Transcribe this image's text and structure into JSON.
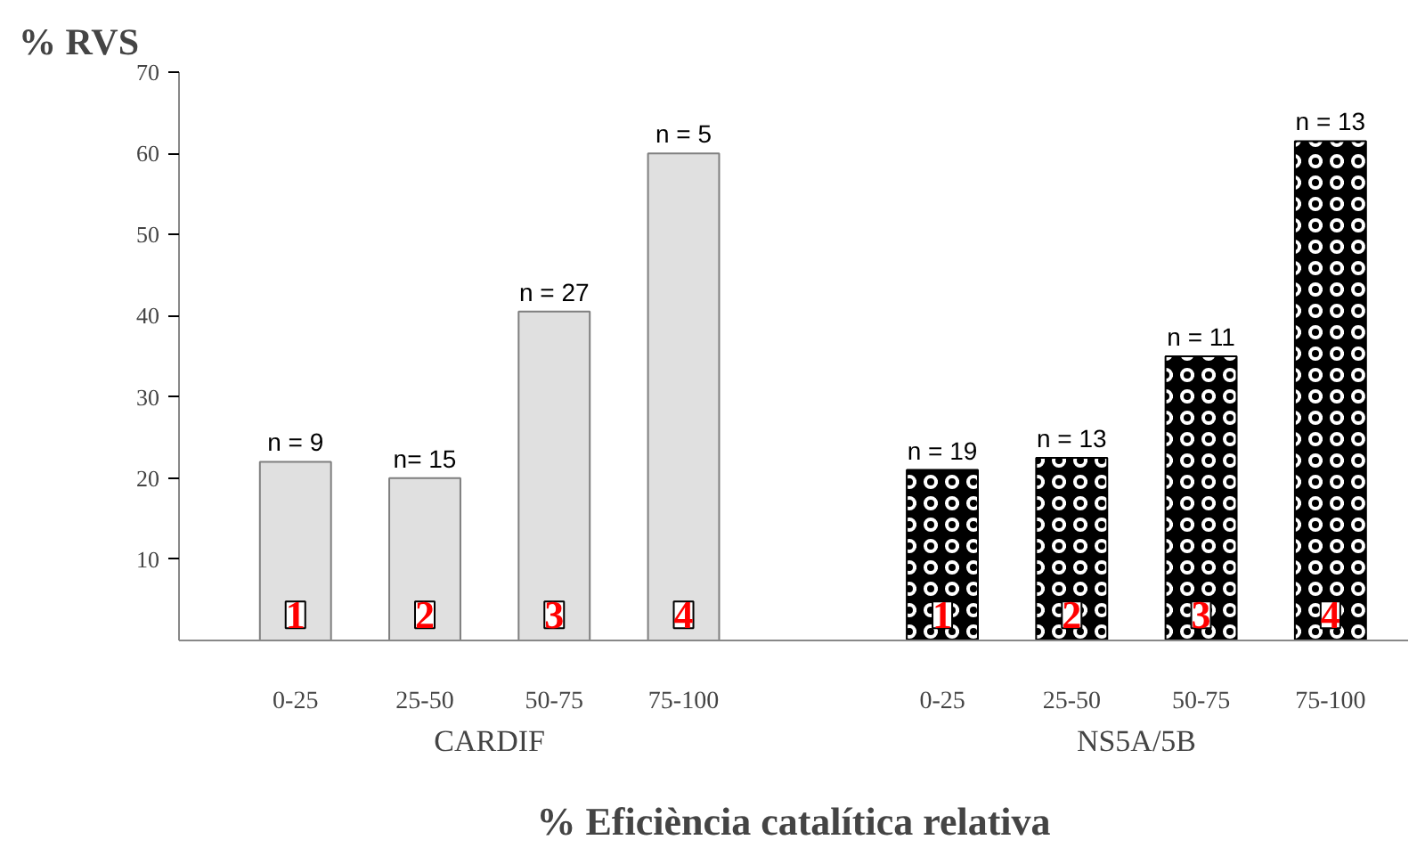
{
  "chart_data": {
    "type": "bar",
    "ylabel": "% RVS",
    "xlabel": "% Eficiència catalítica relativa",
    "categories": [
      "0-25",
      "25-50",
      "50-75",
      "75-100",
      null,
      "0-25",
      "25-50",
      "50-75",
      "75-100"
    ],
    "series": [
      {
        "color": "#e0e0e0",
        "values": [
          22,
          20,
          40.5,
          60,
          null,
          null,
          null,
          null,
          null
        ]
      },
      {
        "color": "#000000",
        "values": [
          null,
          null,
          null,
          null,
          null,
          21,
          22.5,
          35,
          61.5
        ]
      }
    ],
    "annotations": [
      "n = 9",
      "n= 15",
      "n = 27",
      "n = 5",
      "n = 19",
      "n = 13",
      "n = 11",
      "n = 13",
      "1",
      "2",
      "3",
      "4",
      "1",
      "2",
      "3",
      "4",
      "CARDIF",
      "NS5A/5B"
    ],
    "ylim": [
      0,
      70
    ],
    "yticks": [
      10,
      20,
      30,
      40,
      50,
      60,
      70
    ],
    "grid": false
  }
}
